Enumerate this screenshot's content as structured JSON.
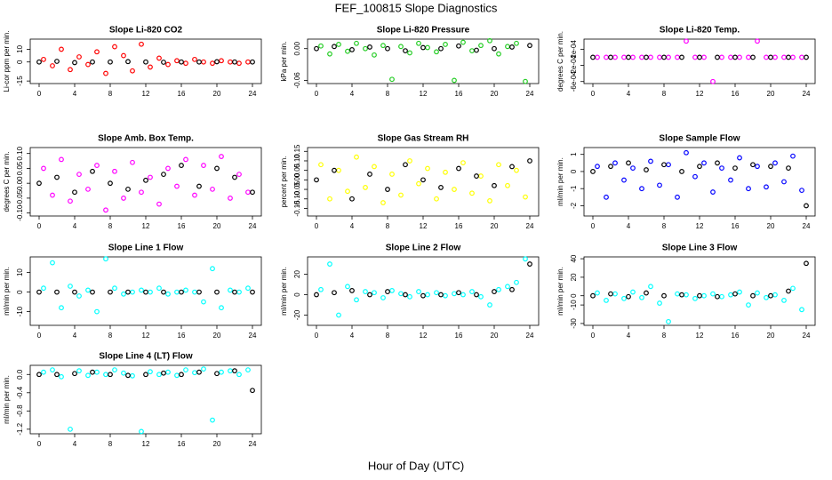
{
  "page": {
    "title": "FEF_100815  Slope Diagnostics",
    "x_label": "Hour of Day (UTC)"
  },
  "chart_data": [
    {
      "type": "scatter",
      "title": "Slope Li-820 CO2",
      "y_label": "Li-cor ppm per min.",
      "xlim": [
        -1,
        25
      ],
      "xticks": [
        0,
        4,
        8,
        12,
        16,
        20,
        24
      ],
      "ylim": [
        -17,
        18
      ],
      "yticks": [
        -15,
        0,
        10
      ],
      "series": [
        {
          "color": "#ff0000",
          "x": [
            0.5,
            1.5,
            2.5,
            3.5,
            4.5,
            5.5,
            6.5,
            7.5,
            8.5,
            9.5,
            10.5,
            11.5,
            12.5,
            13.5,
            14.5,
            15.5,
            16.5,
            17.5,
            18.5,
            19.5,
            20.5,
            21.5,
            22.5,
            23.5
          ],
          "values": [
            2,
            -3,
            10,
            -6,
            4,
            -2,
            8,
            -9,
            12,
            5,
            -7,
            14,
            -4,
            3,
            -2,
            1,
            -1,
            2,
            0,
            -1,
            1,
            0,
            -1,
            0
          ]
        },
        {
          "color": "#000000",
          "x": [
            0,
            2,
            4,
            6,
            8,
            10,
            12,
            14,
            16,
            18,
            20,
            22,
            24
          ],
          "values": [
            0,
            0.5,
            -0.5,
            0,
            0,
            0.3,
            0,
            -0.2,
            0,
            0,
            0.2,
            0,
            0
          ]
        }
      ]
    },
    {
      "type": "scatter",
      "title": "Slope Li-820 Pressure",
      "y_label": "kPa per min.",
      "xlim": [
        -1,
        25
      ],
      "xticks": [
        0,
        4,
        8,
        12,
        16,
        20,
        24
      ],
      "ylim": [
        -0.066,
        0.018
      ],
      "yticks": [
        -0.06,
        {
          "value": 0,
          "label": "0.00"
        }
      ],
      "series": [
        {
          "color": "#22cc22",
          "x": [
            0.5,
            1.5,
            2.5,
            3.5,
            4.5,
            5.5,
            6.5,
            7.5,
            8.5,
            9.5,
            10.5,
            11.5,
            12.5,
            13.5,
            14.5,
            15.5,
            16.5,
            17.5,
            18.5,
            19.5,
            20.5,
            21.5,
            22.5,
            23.5
          ],
          "values": [
            0.005,
            -0.01,
            0.008,
            -0.005,
            0.01,
            0,
            -0.012,
            0.006,
            -0.058,
            0.004,
            -0.008,
            0.01,
            0.002,
            -0.006,
            0.008,
            -0.06,
            0.012,
            -0.004,
            0.006,
            0.015,
            -0.01,
            0.004,
            0.01,
            -0.062
          ]
        },
        {
          "color": "#000000",
          "x": [
            0,
            2,
            4,
            6,
            8,
            10,
            12,
            14,
            16,
            18,
            20,
            22,
            24
          ],
          "values": [
            0,
            0.004,
            -0.002,
            0.003,
            0,
            -0.004,
            0.002,
            0,
            0.005,
            -0.003,
            0,
            0.003,
            0.006
          ]
        }
      ]
    },
    {
      "type": "scatter",
      "title": "Slope Li-820 Temp.",
      "y_label": "degrees C per min.",
      "xlim": [
        -1,
        25
      ],
      "xticks": [
        0,
        4,
        8,
        12,
        16,
        20,
        24
      ],
      "ylim": [
        -0.00065,
        0.00045
      ],
      "yticks": [
        {
          "value": -0.0006,
          "label": "-6e-04"
        },
        {
          "value": -0.0002,
          "label": "-2e-04"
        },
        {
          "value": 0.0002,
          "label": "2e-04"
        }
      ],
      "series": [
        {
          "color": "#ff00ff",
          "x": [
            0.5,
            1.5,
            2.5,
            3.5,
            4.5,
            5.5,
            6.5,
            7.5,
            8.5,
            9.5,
            10.5,
            11.5,
            12.5,
            13.5,
            14.5,
            15.5,
            16.5,
            17.5,
            18.5,
            19.5,
            20.5,
            21.5,
            22.5,
            23.5
          ],
          "values": [
            0,
            0,
            0,
            0,
            0,
            0,
            0,
            0,
            0,
            0,
            0.0004,
            0,
            0,
            -0.0006,
            0,
            0,
            0,
            0,
            0.0004,
            0,
            0,
            0,
            0,
            0
          ]
        },
        {
          "color": "#000000",
          "x": [
            0,
            2,
            4,
            6,
            8,
            10,
            12,
            14,
            16,
            18,
            20,
            22,
            24
          ],
          "values": [
            0,
            0,
            0,
            0,
            0,
            0,
            0,
            0,
            0,
            0,
            0,
            0,
            0
          ]
        }
      ]
    },
    {
      "type": "scatter",
      "title": "Slope Amb. Box Temp.",
      "y_label": "degrees C per min.",
      "xlim": [
        -1,
        25
      ],
      "xticks": [
        0,
        4,
        8,
        12,
        16,
        20,
        24
      ],
      "ylim": [
        -0.11,
        0.12
      ],
      "yticks": [
        {
          "value": -0.1,
          "label": "-0.10"
        },
        -0.05,
        {
          "value": 0,
          "label": "0.00"
        },
        0.05,
        {
          "value": 0.1,
          "label": "0.10"
        }
      ],
      "series": [
        {
          "color": "#ff00ff",
          "x": [
            0.5,
            1.5,
            2.5,
            3.5,
            4.5,
            5.5,
            6.5,
            7.5,
            8.5,
            9.5,
            10.5,
            11.5,
            12.5,
            13.5,
            14.5,
            15.5,
            16.5,
            17.5,
            18.5,
            19.5,
            20.5,
            21.5,
            22.5,
            23.5
          ],
          "values": [
            0.05,
            -0.04,
            0.08,
            -0.06,
            0.03,
            -0.02,
            0.06,
            -0.09,
            0.04,
            -0.05,
            0.07,
            -0.03,
            0.02,
            -0.07,
            0.05,
            -0.01,
            0.08,
            -0.04,
            0.06,
            -0.02,
            0.09,
            -0.05,
            0.03,
            -0.03
          ]
        },
        {
          "color": "#000000",
          "x": [
            0,
            2,
            4,
            6,
            8,
            10,
            12,
            14,
            16,
            18,
            20,
            22,
            24
          ],
          "values": [
            0,
            0.02,
            -0.03,
            0.04,
            0,
            -0.02,
            0.01,
            0.03,
            0.06,
            -0.01,
            0.05,
            0.02,
            -0.03
          ]
        }
      ]
    },
    {
      "type": "scatter",
      "title": "Slope Gas Stream RH",
      "y_label": "percent per min.",
      "xlim": [
        -1,
        25
      ],
      "xticks": [
        0,
        4,
        8,
        12,
        16,
        20,
        24
      ],
      "ylim": [
        -0.19,
        0.17
      ],
      "yticks": [
        -0.15,
        {
          "value": -0.1,
          "label": "-0.10"
        },
        -0.05,
        {
          "value": 0,
          "label": "0.00"
        },
        0.05,
        {
          "value": 0.1,
          "label": "0.10"
        },
        0.15
      ],
      "series": [
        {
          "color": "#ffff00",
          "x": [
            0.5,
            1.5,
            2.5,
            3.5,
            4.5,
            5.5,
            6.5,
            7.5,
            8.5,
            9.5,
            10.5,
            11.5,
            12.5,
            13.5,
            14.5,
            15.5,
            16.5,
            17.5,
            18.5,
            19.5,
            20.5,
            21.5,
            22.5,
            23.5
          ],
          "values": [
            0.08,
            -0.1,
            0.05,
            -0.06,
            0.12,
            -0.04,
            0.07,
            -0.12,
            0.03,
            -0.08,
            0.1,
            -0.02,
            0.06,
            -0.1,
            0.04,
            -0.05,
            0.09,
            -0.07,
            0.02,
            -0.11,
            0.08,
            -0.03,
            0.05,
            -0.09
          ]
        },
        {
          "color": "#000000",
          "x": [
            0,
            2,
            4,
            6,
            8,
            10,
            12,
            14,
            16,
            18,
            20,
            22,
            24
          ],
          "values": [
            0,
            0.05,
            -0.1,
            0.03,
            -0.05,
            0.08,
            0,
            -0.04,
            0.06,
            0.02,
            -0.03,
            0.07,
            0.1
          ]
        }
      ]
    },
    {
      "type": "scatter",
      "title": "Slope Sample Flow",
      "y_label": "ml/min per min.",
      "xlim": [
        -1,
        25
      ],
      "xticks": [
        0,
        4,
        8,
        12,
        16,
        20,
        24
      ],
      "ylim": [
        -2.6,
        1.4
      ],
      "yticks": [
        -2,
        -1,
        0,
        1
      ],
      "series": [
        {
          "color": "#0000ff",
          "x": [
            0.5,
            1.5,
            2.5,
            3.5,
            4.5,
            5.5,
            6.5,
            7.5,
            8.5,
            9.5,
            10.5,
            11.5,
            12.5,
            13.5,
            14.5,
            15.5,
            16.5,
            17.5,
            18.5,
            19.5,
            20.5,
            21.5,
            22.5,
            23.5
          ],
          "values": [
            0.3,
            -1.5,
            0.5,
            -0.5,
            0.2,
            -1,
            0.6,
            -0.8,
            0.4,
            -1.5,
            1.1,
            -0.3,
            0.5,
            -1.2,
            0.2,
            -0.5,
            0.8,
            -1,
            0.3,
            -0.9,
            0.5,
            -0.6,
            0.9,
            -1.1
          ]
        },
        {
          "color": "#000000",
          "x": [
            0,
            2,
            4,
            6,
            8,
            10,
            12,
            14,
            16,
            18,
            20,
            22,
            24
          ],
          "values": [
            0,
            0.3,
            0.5,
            0.1,
            0.4,
            0,
            0.3,
            0.5,
            0.2,
            0.4,
            0.3,
            0.2,
            -2
          ]
        }
      ]
    },
    {
      "type": "scatter",
      "title": "Slope Line 1 Flow",
      "y_label": "ml/min per min.",
      "xlim": [
        -1,
        25
      ],
      "xticks": [
        0,
        4,
        8,
        12,
        16,
        20,
        24
      ],
      "ylim": [
        -17,
        18
      ],
      "yticks": [
        -10,
        0,
        10
      ],
      "series": [
        {
          "color": "#00ffff",
          "x": [
            0.5,
            1.5,
            2.5,
            3.5,
            4.5,
            5.5,
            6.5,
            7.5,
            8.5,
            9.5,
            10.5,
            11.5,
            12.5,
            13.5,
            14.5,
            15.5,
            16.5,
            17.5,
            18.5,
            19.5,
            20.5,
            21.5,
            22.5,
            23.5
          ],
          "values": [
            2,
            15,
            -8,
            3,
            -2,
            1,
            -10,
            17,
            2,
            -1,
            0,
            1,
            0,
            2,
            -1,
            0,
            1,
            0,
            -5,
            12,
            -8,
            1,
            0,
            2
          ]
        },
        {
          "color": "#000000",
          "x": [
            0,
            2,
            4,
            6,
            8,
            10,
            12,
            14,
            16,
            18,
            20,
            22,
            24
          ],
          "values": [
            0,
            0,
            0,
            0,
            0,
            0,
            0,
            0,
            0,
            0,
            0,
            0,
            0
          ]
        }
      ]
    },
    {
      "type": "scatter",
      "title": "Slope Line 2 Flow",
      "y_label": "ml/min per min.",
      "xlim": [
        -1,
        25
      ],
      "xticks": [
        0,
        4,
        8,
        12,
        16,
        20,
        24
      ],
      "ylim": [
        -30,
        37
      ],
      "yticks": [
        -20,
        0,
        20
      ],
      "series": [
        {
          "color": "#00ffff",
          "x": [
            0.5,
            1.5,
            2.5,
            3.5,
            4.5,
            5.5,
            6.5,
            7.5,
            8.5,
            9.5,
            10.5,
            11.5,
            12.5,
            13.5,
            14.5,
            15.5,
            16.5,
            17.5,
            18.5,
            19.5,
            20.5,
            21.5,
            22.5,
            23.5
          ],
          "values": [
            5,
            30,
            -20,
            8,
            -5,
            3,
            2,
            -3,
            4,
            1,
            -2,
            3,
            0,
            2,
            -1,
            1,
            0,
            3,
            -2,
            -10,
            5,
            8,
            12,
            35
          ]
        },
        {
          "color": "#000000",
          "x": [
            0,
            2,
            4,
            6,
            8,
            10,
            12,
            14,
            16,
            18,
            20,
            22,
            24
          ],
          "values": [
            0,
            2,
            4,
            0,
            3,
            0,
            -1,
            0,
            2,
            0,
            3,
            5,
            30
          ]
        }
      ]
    },
    {
      "type": "scatter",
      "title": "Slope Line 3 Flow",
      "y_label": "ml/min per min.",
      "xlim": [
        -1,
        25
      ],
      "xticks": [
        0,
        4,
        8,
        12,
        16,
        20,
        24
      ],
      "ylim": [
        -32,
        42
      ],
      "yticks": [
        -30,
        -10,
        0,
        20,
        40
      ],
      "series": [
        {
          "color": "#00ffff",
          "x": [
            0.5,
            1.5,
            2.5,
            3.5,
            4.5,
            5.5,
            6.5,
            7.5,
            8.5,
            9.5,
            10.5,
            11.5,
            12.5,
            13.5,
            14.5,
            15.5,
            16.5,
            17.5,
            18.5,
            19.5,
            20.5,
            21.5,
            22.5,
            23.5
          ],
          "values": [
            3,
            -5,
            2,
            -3,
            4,
            -2,
            10,
            -8,
            -28,
            2,
            1,
            -3,
            0,
            2,
            -1,
            1,
            4,
            -10,
            3,
            -2,
            1,
            -5,
            8,
            -15
          ]
        },
        {
          "color": "#000000",
          "x": [
            0,
            2,
            4,
            6,
            8,
            10,
            12,
            14,
            16,
            18,
            20,
            22,
            24
          ],
          "values": [
            0,
            2,
            -1,
            3,
            0,
            1,
            0,
            -1,
            2,
            0,
            0,
            5,
            35
          ]
        }
      ]
    },
    {
      "type": "scatter",
      "title": "Slope Line 4 (LT) Flow",
      "y_label": "ml/min per min.",
      "xlim": [
        -1,
        25
      ],
      "xticks": [
        0,
        4,
        8,
        12,
        16,
        20,
        24
      ],
      "ylim": [
        -1.3,
        0.2
      ],
      "yticks": [
        -1.2,
        -0.8,
        -0.4,
        {
          "value": 0,
          "label": "0.0"
        }
      ],
      "series": [
        {
          "color": "#00ffff",
          "x": [
            0.5,
            1.5,
            2.5,
            3.5,
            4.5,
            5.5,
            6.5,
            7.5,
            8.5,
            9.5,
            10.5,
            11.5,
            12.5,
            13.5,
            14.5,
            15.5,
            16.5,
            17.5,
            18.5,
            19.5,
            20.5,
            21.5,
            22.5,
            23.5
          ],
          "values": [
            0.05,
            0.1,
            -0.05,
            -1.2,
            0.08,
            -0.02,
            0.05,
            0,
            0.1,
            0.03,
            -0.03,
            -1.25,
            0.06,
            0,
            0.05,
            -0.02,
            0.1,
            0.04,
            0.12,
            -1.0,
            0.05,
            0.08,
            0,
            0.1
          ]
        },
        {
          "color": "#000000",
          "x": [
            0,
            2,
            4,
            6,
            8,
            10,
            12,
            14,
            16,
            18,
            20,
            22,
            24
          ],
          "values": [
            0,
            0,
            0.02,
            0.05,
            0,
            -0.02,
            0,
            0.03,
            0,
            0.05,
            0.02,
            0.08,
            -0.35
          ]
        }
      ]
    }
  ]
}
